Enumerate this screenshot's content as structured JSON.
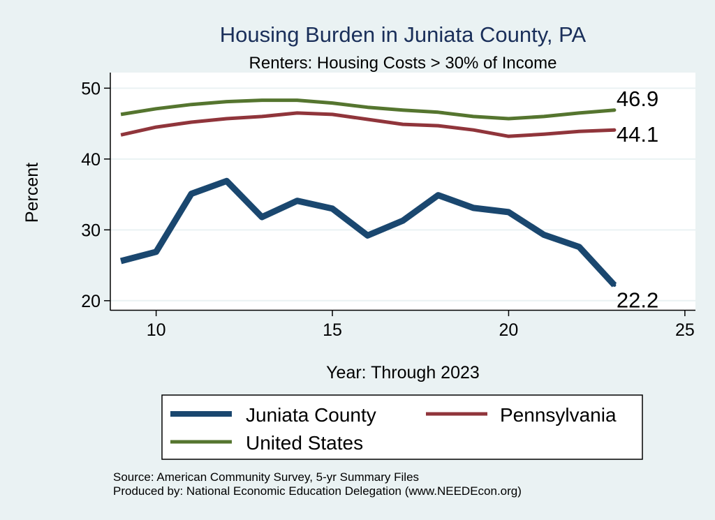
{
  "colors": {
    "background": "#eaf2f3",
    "plot_background": "#ffffff",
    "grid": "#eaf2f3",
    "title": "#1a2f5a"
  },
  "chart_data": {
    "type": "line",
    "title": "Housing Burden in Juniata County, PA",
    "subtitle": "Renters: Housing Costs > 30% of Income",
    "xlabel": "Year: Through 2023",
    "ylabel": "Percent",
    "xlim": [
      8.7,
      25.3
    ],
    "ylim": [
      18.7,
      52.2
    ],
    "xticks": [
      10,
      15,
      20,
      25
    ],
    "yticks": [
      20,
      30,
      40,
      50
    ],
    "grid": true,
    "x": [
      9,
      10,
      11,
      12,
      13,
      14,
      15,
      16,
      17,
      18,
      19,
      20,
      21,
      22,
      23
    ],
    "series": [
      {
        "name": "Juniata County",
        "color": "#1a476f",
        "values": [
          25.6,
          26.9,
          35.1,
          36.9,
          31.8,
          34.1,
          33.0,
          29.2,
          31.3,
          34.9,
          33.1,
          32.5,
          29.3,
          27.6,
          22.2
        ],
        "end_label": "22.2"
      },
      {
        "name": "Pennsylvania",
        "color": "#90353b",
        "values": [
          43.4,
          44.5,
          45.2,
          45.7,
          46.0,
          46.5,
          46.3,
          45.6,
          44.9,
          44.7,
          44.1,
          43.2,
          43.5,
          43.9,
          44.1
        ],
        "end_label": "44.1"
      },
      {
        "name": "United States",
        "color": "#55752f",
        "values": [
          46.3,
          47.1,
          47.7,
          48.1,
          48.3,
          48.3,
          47.9,
          47.3,
          46.9,
          46.6,
          46.0,
          45.7,
          46.0,
          46.5,
          46.9
        ],
        "end_label": "46.9"
      }
    ],
    "legend": {
      "position": "bottom",
      "entries": [
        "Juniata County",
        "Pennsylvania",
        "United States"
      ]
    },
    "source_lines": [
      "Source: American Community Survey, 5-yr Summary Files",
      "Produced by: National Economic Education Delegation (www.NEEDEcon.org)"
    ]
  }
}
